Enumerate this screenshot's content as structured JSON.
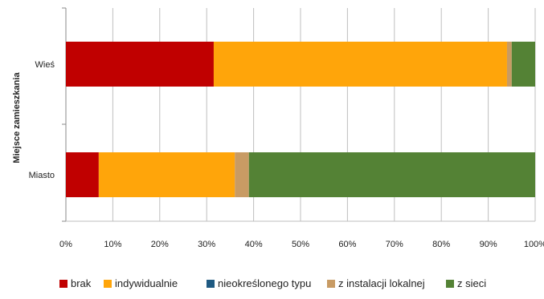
{
  "chart_data": {
    "type": "bar",
    "orientation": "horizontal",
    "stacked": true,
    "percent": true,
    "categories": [
      "Wieś",
      "Miasto"
    ],
    "ylabel": "Miejsce  zamieszkania",
    "xlim": [
      0,
      100
    ],
    "x_ticks": [
      "0%",
      "10%",
      "20%",
      "30%",
      "40%",
      "50%",
      "60%",
      "70%",
      "80%",
      "90%",
      "100%"
    ],
    "grid": true,
    "legend_position": "bottom",
    "series": [
      {
        "name": "brak",
        "color": "#c00000",
        "values": [
          31.5,
          7.0
        ]
      },
      {
        "name": "indywidualnie",
        "color": "#ffa50a",
        "values": [
          62.5,
          29.0
        ]
      },
      {
        "name": "nieokreślonego typu",
        "color": "#1f5a82",
        "values": [
          0.0,
          0.0
        ]
      },
      {
        "name": "z instalacji lokalnej",
        "color": "#c89b64",
        "values": [
          1.0,
          3.0
        ]
      },
      {
        "name": "z sieci",
        "color": "#548235",
        "values": [
          5.0,
          61.0
        ]
      }
    ]
  }
}
